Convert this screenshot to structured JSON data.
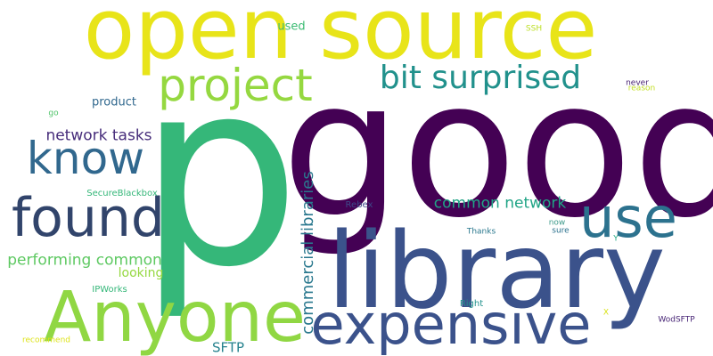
{
  "cloud": {
    "background": "#ffffff",
    "words": [
      {
        "key": "open_source",
        "text": "open source",
        "color": "#e8e419"
      },
      {
        "key": "good",
        "text": "good",
        "color": "#440154"
      },
      {
        "key": "p",
        "text": "p",
        "color": "#35b779"
      },
      {
        "key": "library",
        "text": "library",
        "color": "#3b528b"
      },
      {
        "key": "anyone",
        "text": "Anyone",
        "color": "#90d743"
      },
      {
        "key": "expensive",
        "text": "expensive",
        "color": "#3b528b"
      },
      {
        "key": "found",
        "text": "found",
        "color": "#31446b"
      },
      {
        "key": "use",
        "text": "use",
        "color": "#2c728e"
      },
      {
        "key": "know",
        "text": "know",
        "color": "#31688e"
      },
      {
        "key": "project",
        "text": "project",
        "color": "#95d840"
      },
      {
        "key": "bit_surprised",
        "text": "bit surprised",
        "color": "#21918c"
      },
      {
        "key": "commercial_libraries",
        "text": "commercial libraries",
        "color": "#2a788e"
      },
      {
        "key": "common_network",
        "text": "common network",
        "color": "#20a486"
      },
      {
        "key": "network_tasks",
        "text": "network tasks",
        "color": "#472d7b"
      },
      {
        "key": "performing_common",
        "text": "performing common",
        "color": "#5ec962"
      },
      {
        "key": "sftp",
        "text": "SFTP",
        "color": "#26828e"
      },
      {
        "key": "looking",
        "text": "looking",
        "color": "#95d840"
      },
      {
        "key": "product",
        "text": "product",
        "color": "#31688e"
      },
      {
        "key": "used",
        "text": "used",
        "color": "#3dbc74"
      },
      {
        "key": "securebb",
        "text": "SecureBlackbox",
        "color": "#35b779"
      },
      {
        "key": "ipworks",
        "text": "IPWorks",
        "color": "#35b779"
      },
      {
        "key": "rebex",
        "text": "Rebex",
        "color": "#3e4989"
      },
      {
        "key": "thanks",
        "text": "Thanks",
        "color": "#2a788e"
      },
      {
        "key": "right",
        "text": "Right",
        "color": "#21918c"
      },
      {
        "key": "now",
        "text": "now",
        "color": "#3e9a8b"
      },
      {
        "key": "sure",
        "text": "sure",
        "color": "#2c728e"
      },
      {
        "key": "never",
        "text": "never",
        "color": "#482173"
      },
      {
        "key": "reason",
        "text": "reason",
        "color": "#c2df23"
      },
      {
        "key": "ssh",
        "text": "SSH",
        "color": "#bddf26"
      },
      {
        "key": "go",
        "text": "go",
        "color": "#50c46a"
      },
      {
        "key": "recommend",
        "text": "recommend",
        "color": "#dde318"
      },
      {
        "key": "wodsftp",
        "text": "WodSFTP",
        "color": "#482576"
      },
      {
        "key": "y",
        "text": "Y",
        "color": "#22a884"
      },
      {
        "key": "x",
        "text": "X",
        "color": "#d8e219"
      }
    ]
  }
}
